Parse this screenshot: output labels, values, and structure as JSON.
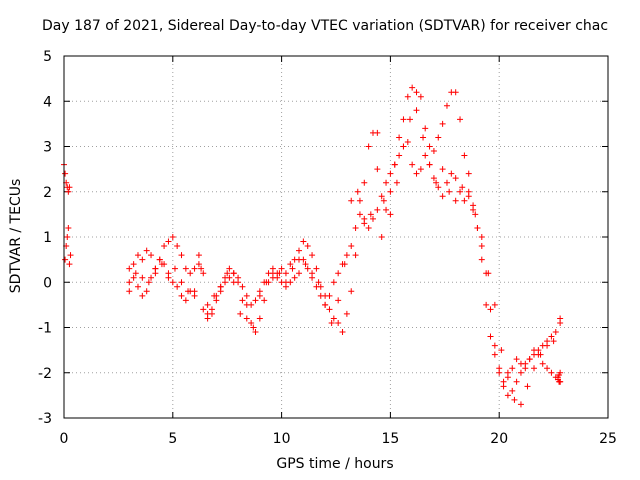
{
  "chart_data": {
    "type": "scatter",
    "title": "Day 187 of 2021, Sidereal Day-to-day VTEC variation (SDTVAR) for receiver chac",
    "xlabel": "GPS time / hours",
    "ylabel": "SDTVAR / TECUs",
    "xlim": [
      0,
      25
    ],
    "ylim": [
      -3,
      5
    ],
    "xticks": [
      "0",
      "5",
      "10",
      "15",
      "20",
      "25"
    ],
    "yticks": [
      "-3",
      "-2",
      "-1",
      "0",
      "1",
      "2",
      "3",
      "4",
      "5"
    ],
    "grid": true,
    "marker": "+",
    "color": "#ff0000",
    "series": [
      {
        "name": "SDTVAR",
        "x": [
          0.0,
          0.05,
          0.1,
          0.15,
          0.2,
          0.25,
          0.05,
          0.1,
          0.15,
          0.2,
          0.25,
          0.3,
          3.0,
          3.2,
          3.4,
          3.6,
          3.8,
          4.0,
          4.2,
          4.4,
          4.6,
          4.8,
          5.0,
          5.2,
          5.4,
          5.6,
          5.8,
          6.0,
          6.2,
          6.4,
          6.6,
          6.8,
          7.0,
          7.2,
          7.4,
          7.6,
          7.8,
          8.0,
          8.2,
          8.4,
          8.6,
          8.8,
          9.0,
          9.2,
          9.4,
          9.6,
          9.8,
          10.0,
          10.2,
          10.4,
          10.6,
          10.8,
          11.0,
          11.2,
          11.4,
          11.6,
          11.8,
          12.0,
          12.2,
          12.4,
          12.6,
          12.8,
          13.0,
          13.2,
          13.4,
          13.6,
          13.8,
          14.0,
          14.2,
          14.4,
          14.6,
          14.8,
          15.0,
          15.2,
          15.4,
          15.6,
          15.8,
          16.0,
          16.2,
          16.4,
          16.6,
          16.8,
          17.0,
          17.2,
          17.4,
          17.6,
          17.8,
          18.0,
          18.2,
          18.4,
          18.6,
          18.8,
          19.0,
          19.2,
          19.4,
          19.6,
          19.8,
          20.0,
          20.2,
          20.4,
          20.6,
          20.8,
          21.0,
          21.2,
          21.4,
          21.6,
          21.8,
          22.0,
          22.2,
          22.4,
          22.6,
          22.8,
          3.0,
          3.2,
          3.4,
          3.6,
          3.8,
          4.0,
          4.2,
          4.4,
          4.6,
          4.8,
          5.0,
          5.2,
          5.4,
          5.6,
          5.8,
          6.0,
          6.2,
          6.4,
          6.6,
          6.8,
          7.0,
          7.2,
          7.4,
          7.6,
          7.8,
          8.0,
          8.2,
          8.4,
          8.6,
          8.8,
          9.0,
          9.2,
          9.4,
          9.6,
          9.8,
          10.0,
          10.2,
          10.4,
          10.6,
          10.8,
          11.0,
          11.2,
          11.4,
          11.6,
          11.8,
          12.0,
          12.2,
          12.4,
          12.6,
          12.8,
          13.0,
          13.2,
          13.4,
          13.6,
          13.8,
          14.0,
          14.2,
          14.4,
          14.6,
          14.8,
          15.0,
          15.2,
          15.4,
          15.6,
          15.8,
          16.0,
          16.2,
          16.4,
          16.6,
          16.8,
          17.0,
          17.2,
          17.4,
          17.6,
          17.8,
          18.0,
          18.2,
          18.4,
          18.6,
          18.8,
          19.0,
          19.2,
          19.4,
          19.6,
          19.8,
          20.0,
          20.2,
          20.4,
          20.6,
          20.8,
          21.0,
          21.2,
          21.4,
          21.6,
          21.8,
          22.0,
          22.2,
          22.4,
          22.6,
          22.8,
          3.0,
          3.3,
          3.6,
          3.9,
          4.2,
          4.5,
          4.8,
          5.1,
          5.4,
          5.7,
          6.0,
          6.3,
          6.6,
          6.9,
          7.2,
          7.5,
          7.8,
          8.1,
          8.4,
          8.7,
          9.0,
          9.3,
          9.6,
          9.9,
          10.2,
          10.5,
          10.8,
          11.1,
          11.4,
          11.7,
          12.0,
          12.3,
          12.6,
          12.9,
          13.2,
          13.5,
          13.8,
          14.1,
          14.4,
          14.7,
          15.0,
          15.3,
          15.6,
          15.9,
          16.2,
          16.5,
          16.8,
          17.1,
          17.4,
          17.7,
          18.0,
          18.3,
          18.6,
          18.9,
          19.2,
          19.5,
          19.8,
          20.1,
          20.4,
          20.7,
          21.0,
          21.3,
          21.6,
          21.9,
          22.2,
          22.5,
          22.8,
          22.7,
          22.75,
          22.8,
          22.7,
          22.75,
          22.8
        ],
        "y": [
          2.6,
          2.4,
          2.2,
          2.1,
          2.0,
          2.1,
          0.5,
          0.8,
          1.0,
          1.2,
          0.4,
          0.6,
          0.0,
          0.4,
          0.6,
          0.5,
          0.7,
          0.6,
          0.3,
          0.5,
          0.8,
          0.9,
          1.0,
          0.8,
          0.6,
          0.3,
          0.2,
          -0.2,
          0.4,
          -0.6,
          -0.8,
          -0.6,
          -0.3,
          -0.2,
          0.0,
          0.1,
          0.2,
          0.0,
          -0.4,
          -0.8,
          -0.9,
          -1.1,
          -0.8,
          -0.4,
          0.0,
          0.2,
          0.1,
          0.3,
          0.2,
          0.4,
          0.5,
          0.7,
          0.9,
          0.8,
          0.6,
          0.3,
          -0.1,
          -0.3,
          -0.6,
          -0.8,
          -0.9,
          -1.1,
          -0.7,
          -0.2,
          0.6,
          1.5,
          2.2,
          3.0,
          3.3,
          3.3,
          1.0,
          1.6,
          2.0,
          2.6,
          3.2,
          3.6,
          4.1,
          4.3,
          4.2,
          4.1,
          3.4,
          3.0,
          2.9,
          3.2,
          3.5,
          3.9,
          4.2,
          4.2,
          3.6,
          2.8,
          2.0,
          1.7,
          1.2,
          0.5,
          -0.5,
          -1.2,
          -1.6,
          -2.0,
          -2.3,
          -2.5,
          -2.4,
          -2.2,
          -2.0,
          -1.8,
          -1.7,
          -1.6,
          -1.5,
          -1.4,
          -1.3,
          -1.2,
          -1.1,
          -0.9,
          0.3,
          0.1,
          -0.1,
          -0.3,
          -0.2,
          0.1,
          0.3,
          0.5,
          0.4,
          0.2,
          0.0,
          -0.1,
          -0.3,
          -0.4,
          -0.2,
          0.3,
          0.6,
          0.2,
          -0.5,
          -0.7,
          -0.4,
          -0.1,
          0.1,
          0.3,
          0.2,
          0.1,
          -0.1,
          -0.3,
          -0.5,
          -0.4,
          -0.2,
          0.0,
          0.2,
          0.3,
          0.2,
          0.0,
          -0.1,
          0.0,
          0.1,
          0.2,
          0.5,
          0.3,
          0.1,
          -0.1,
          -0.3,
          -0.5,
          -0.3,
          0.0,
          0.2,
          0.4,
          0.6,
          0.8,
          1.2,
          1.8,
          1.4,
          1.2,
          1.4,
          1.6,
          1.9,
          2.2,
          2.4,
          2.6,
          2.8,
          3.0,
          3.1,
          2.6,
          2.4,
          2.5,
          2.8,
          2.6,
          2.3,
          2.1,
          1.9,
          2.2,
          2.4,
          2.3,
          2.0,
          1.8,
          1.9,
          1.6,
          1.2,
          0.8,
          0.2,
          -0.6,
          -1.4,
          -1.9,
          -2.2,
          -2.1,
          -1.9,
          -1.7,
          -1.8,
          -1.9,
          -1.7,
          -1.5,
          -1.6,
          -1.8,
          -1.9,
          -2.0,
          -2.1,
          -2.2,
          -0.2,
          0.2,
          0.1,
          0.0,
          0.2,
          0.4,
          0.1,
          0.3,
          0.0,
          -0.2,
          -0.3,
          0.3,
          -0.7,
          -0.3,
          -0.1,
          0.2,
          0.0,
          -0.7,
          -0.5,
          -1.0,
          -0.3,
          0.0,
          0.1,
          0.2,
          0.0,
          0.3,
          0.5,
          0.4,
          0.2,
          0.0,
          -0.5,
          -0.9,
          -0.4,
          0.4,
          1.8,
          2.0,
          1.3,
          1.5,
          2.5,
          1.8,
          1.5,
          2.2,
          3.0,
          3.6,
          3.8,
          3.2,
          2.6,
          2.2,
          2.5,
          2.0,
          1.8,
          2.1,
          2.4,
          1.5,
          1.0,
          0.2,
          -0.5,
          -1.5,
          -2.0,
          -2.6,
          -2.7,
          -2.3,
          -1.9,
          -1.6,
          -1.4,
          -1.3,
          -0.8,
          -2.1,
          -2.2,
          -2.0,
          -2.15,
          -2.05,
          -2.2
        ]
      }
    ]
  }
}
